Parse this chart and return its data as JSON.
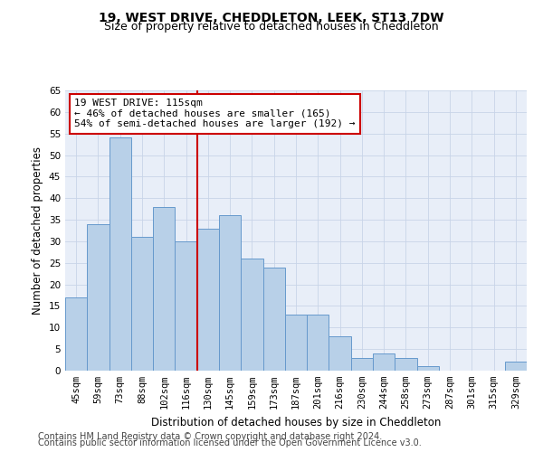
{
  "title": "19, WEST DRIVE, CHEDDLETON, LEEK, ST13 7DW",
  "subtitle": "Size of property relative to detached houses in Cheddleton",
  "xlabel": "Distribution of detached houses by size in Cheddleton",
  "ylabel": "Number of detached properties",
  "categories": [
    "45sqm",
    "59sqm",
    "73sqm",
    "88sqm",
    "102sqm",
    "116sqm",
    "130sqm",
    "145sqm",
    "159sqm",
    "173sqm",
    "187sqm",
    "201sqm",
    "216sqm",
    "230sqm",
    "244sqm",
    "258sqm",
    "273sqm",
    "287sqm",
    "301sqm",
    "315sqm",
    "329sqm"
  ],
  "values": [
    17,
    34,
    54,
    31,
    38,
    30,
    33,
    36,
    26,
    24,
    13,
    13,
    8,
    3,
    4,
    3,
    1,
    0,
    0,
    0,
    2
  ],
  "bar_color": "#b8d0e8",
  "bar_edge_color": "#6699cc",
  "grid_color": "#c8d4e8",
  "background_color": "#e8eef8",
  "vline_x_index": 5,
  "vline_color": "#cc0000",
  "annotation_line1": "19 WEST DRIVE: 115sqm",
  "annotation_line2": "← 46% of detached houses are smaller (165)",
  "annotation_line3": "54% of semi-detached houses are larger (192) →",
  "annotation_box_color": "#ffffff",
  "annotation_box_edge": "#cc0000",
  "ylim": [
    0,
    65
  ],
  "yticks": [
    0,
    5,
    10,
    15,
    20,
    25,
    30,
    35,
    40,
    45,
    50,
    55,
    60,
    65
  ],
  "footer1": "Contains HM Land Registry data © Crown copyright and database right 2024.",
  "footer2": "Contains public sector information licensed under the Open Government Licence v3.0.",
  "title_fontsize": 10,
  "subtitle_fontsize": 9,
  "annotation_fontsize": 8,
  "axis_label_fontsize": 8.5,
  "tick_fontsize": 7.5,
  "footer_fontsize": 7
}
